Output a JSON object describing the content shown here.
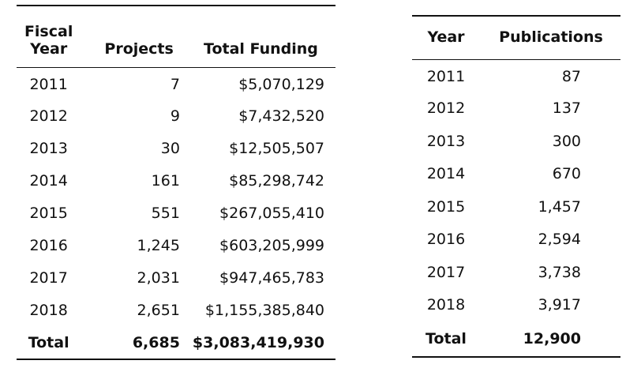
{
  "funding_table": {
    "headers": {
      "year": "Fiscal Year",
      "projects": "Projects",
      "funding": "Total Funding"
    },
    "rows": [
      {
        "year": "2011",
        "projects": "7",
        "funding": "$5,070,129"
      },
      {
        "year": "2012",
        "projects": "9",
        "funding": "$7,432,520"
      },
      {
        "year": "2013",
        "projects": "30",
        "funding": "$12,505,507"
      },
      {
        "year": "2014",
        "projects": "161",
        "funding": "$85,298,742"
      },
      {
        "year": "2015",
        "projects": "551",
        "funding": "$267,055,410"
      },
      {
        "year": "2016",
        "projects": "1,245",
        "funding": "$603,205,999"
      },
      {
        "year": "2017",
        "projects": "2,031",
        "funding": "$947,465,783"
      },
      {
        "year": "2018",
        "projects": "2,651",
        "funding": "$1,155,385,840"
      }
    ],
    "total": {
      "label": "Total",
      "projects": "6,685",
      "funding": "$3,083,419,930"
    }
  },
  "publications_table": {
    "headers": {
      "year": "Year",
      "publications": "Publications"
    },
    "rows": [
      {
        "year": "2011",
        "publications": "87"
      },
      {
        "year": "2012",
        "publications": "137"
      },
      {
        "year": "2013",
        "publications": "300"
      },
      {
        "year": "2014",
        "publications": "670"
      },
      {
        "year": "2015",
        "publications": "1,457"
      },
      {
        "year": "2016",
        "publications": "2,594"
      },
      {
        "year": "2017",
        "publications": "3,738"
      },
      {
        "year": "2018",
        "publications": "3,917"
      }
    ],
    "total": {
      "label": "Total",
      "publications": "12,900"
    }
  }
}
